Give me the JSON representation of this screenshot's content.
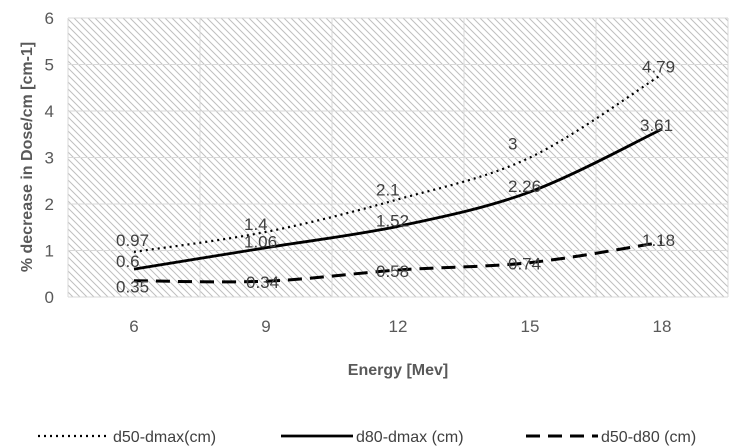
{
  "chart_data": {
    "type": "line",
    "title": "",
    "xlabel": "Energy [Mev]",
    "ylabel": "% decrease in Dose/cm [cm-1]",
    "categories": [
      "6",
      "9",
      "12",
      "15",
      "18"
    ],
    "ylim": [
      0,
      6
    ],
    "yticks": [
      0,
      1,
      2,
      3,
      4,
      5,
      6
    ],
    "grid": true,
    "legend_position": "bottom",
    "series": [
      {
        "name": "d50-dmax(cm)",
        "values": [
          0.97,
          1.4,
          2.1,
          3,
          4.79
        ],
        "labels": [
          "0.97",
          "1.4",
          "2.1",
          "3",
          "4.79"
        ],
        "style": "dotted",
        "color": "#000000"
      },
      {
        "name": "d80-dmax (cm)",
        "values": [
          0.6,
          1.06,
          1.52,
          2.26,
          3.61
        ],
        "labels": [
          "0.6",
          "1.06",
          "1.52",
          "2.26",
          "3.61"
        ],
        "style": "solid",
        "color": "#000000"
      },
      {
        "name": "d50-d80 (cm)",
        "values": [
          0.35,
          0.34,
          0.58,
          0.74,
          1.18
        ],
        "labels": [
          "0.35",
          "0.34",
          "0.58",
          "0.74",
          "1.18"
        ],
        "style": "dashed",
        "color": "#000000"
      }
    ]
  }
}
